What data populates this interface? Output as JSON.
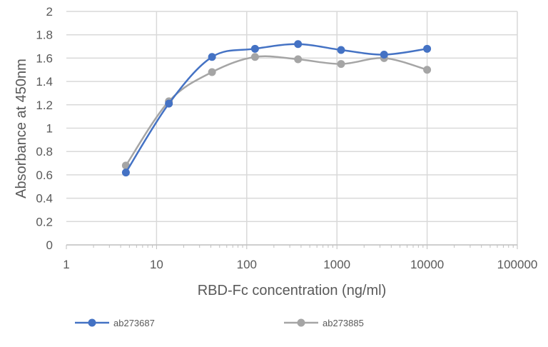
{
  "chart_data": {
    "type": "line",
    "title": "",
    "xlabel": "RBD-Fc concentration (ng/ml)",
    "ylabel": "Absorbance at 450nm",
    "xscale": "log",
    "xlim": [
      1,
      100000
    ],
    "ylim": [
      0,
      2
    ],
    "x_ticks": [
      "1",
      "10",
      "100",
      "1000",
      "10000",
      "100000"
    ],
    "y_ticks": [
      "0",
      "0.2",
      "0.4",
      "0.6",
      "0.8",
      "1",
      "1.2",
      "1.4",
      "1.6",
      "1.8",
      "2"
    ],
    "grid": true,
    "legend_position": "bottom",
    "x": [
      4.57,
      13.7,
      41.2,
      123.5,
      370.4,
      1111,
      3333,
      10000
    ],
    "series": [
      {
        "name": "ab273687",
        "color": "#4472C4",
        "values": [
          0.62,
          1.21,
          1.61,
          1.68,
          1.72,
          1.67,
          1.63,
          1.68
        ]
      },
      {
        "name": "ab273885",
        "color": "#A5A5A5",
        "values": [
          0.68,
          1.23,
          1.48,
          1.61,
          1.59,
          1.55,
          1.6,
          1.5
        ]
      }
    ]
  }
}
